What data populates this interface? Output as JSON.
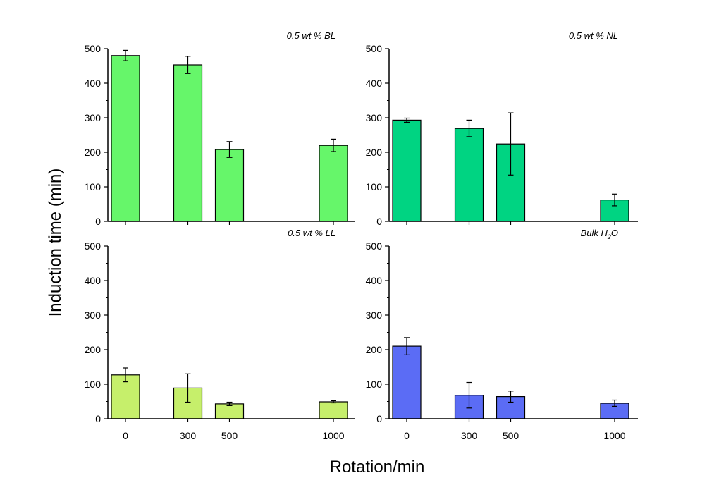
{
  "figure": {
    "ylabel": "Induction time (min)",
    "xlabel": "Rotation/min"
  },
  "chart_data": [
    {
      "type": "bar",
      "title": "0.5 wt % BL",
      "x": [
        0,
        300,
        500,
        1000
      ],
      "values": [
        480,
        453,
        208,
        220
      ],
      "errors": [
        15,
        25,
        23,
        18
      ],
      "color": "#66f66a",
      "ylim": [
        0,
        500
      ],
      "yticks": [
        "0",
        "100",
        "200",
        "300",
        "400",
        "500"
      ],
      "xticks": [
        "0",
        "300",
        "500",
        "1000"
      ],
      "show_xticklabels": false
    },
    {
      "type": "bar",
      "title": "0.5 wt % NL",
      "x": [
        0,
        300,
        500,
        1000
      ],
      "values": [
        293,
        269,
        224,
        62
      ],
      "errors": [
        6,
        24,
        90,
        17
      ],
      "color": "#00d482",
      "ylim": [
        0,
        500
      ],
      "yticks": [
        "0",
        "100",
        "200",
        "300",
        "400",
        "500"
      ],
      "xticks": [
        "0",
        "300",
        "500",
        "1000"
      ],
      "show_xticklabels": false
    },
    {
      "type": "bar",
      "title": "0.5 wt % LL",
      "x": [
        0,
        300,
        500,
        1000
      ],
      "values": [
        127,
        89,
        43,
        49
      ],
      "errors": [
        20,
        41,
        5,
        3
      ],
      "color": "#c6ef6b",
      "ylim": [
        0,
        500
      ],
      "yticks": [
        "0",
        "100",
        "200",
        "300",
        "400",
        "500"
      ],
      "xticks": [
        "0",
        "300",
        "500",
        "1000"
      ],
      "show_xticklabels": true
    },
    {
      "type": "bar",
      "title": "Bulk H2O",
      "title_parts": [
        "Bulk H",
        "2",
        "O"
      ],
      "x": [
        0,
        300,
        500,
        1000
      ],
      "values": [
        210,
        68,
        64,
        45
      ],
      "errors": [
        25,
        37,
        16,
        9
      ],
      "color": "#5b6cf5",
      "ylim": [
        0,
        500
      ],
      "yticks": [
        "0",
        "100",
        "200",
        "300",
        "400",
        "500"
      ],
      "xticks": [
        "0",
        "300",
        "500",
        "1000"
      ],
      "show_xticklabels": true
    }
  ]
}
